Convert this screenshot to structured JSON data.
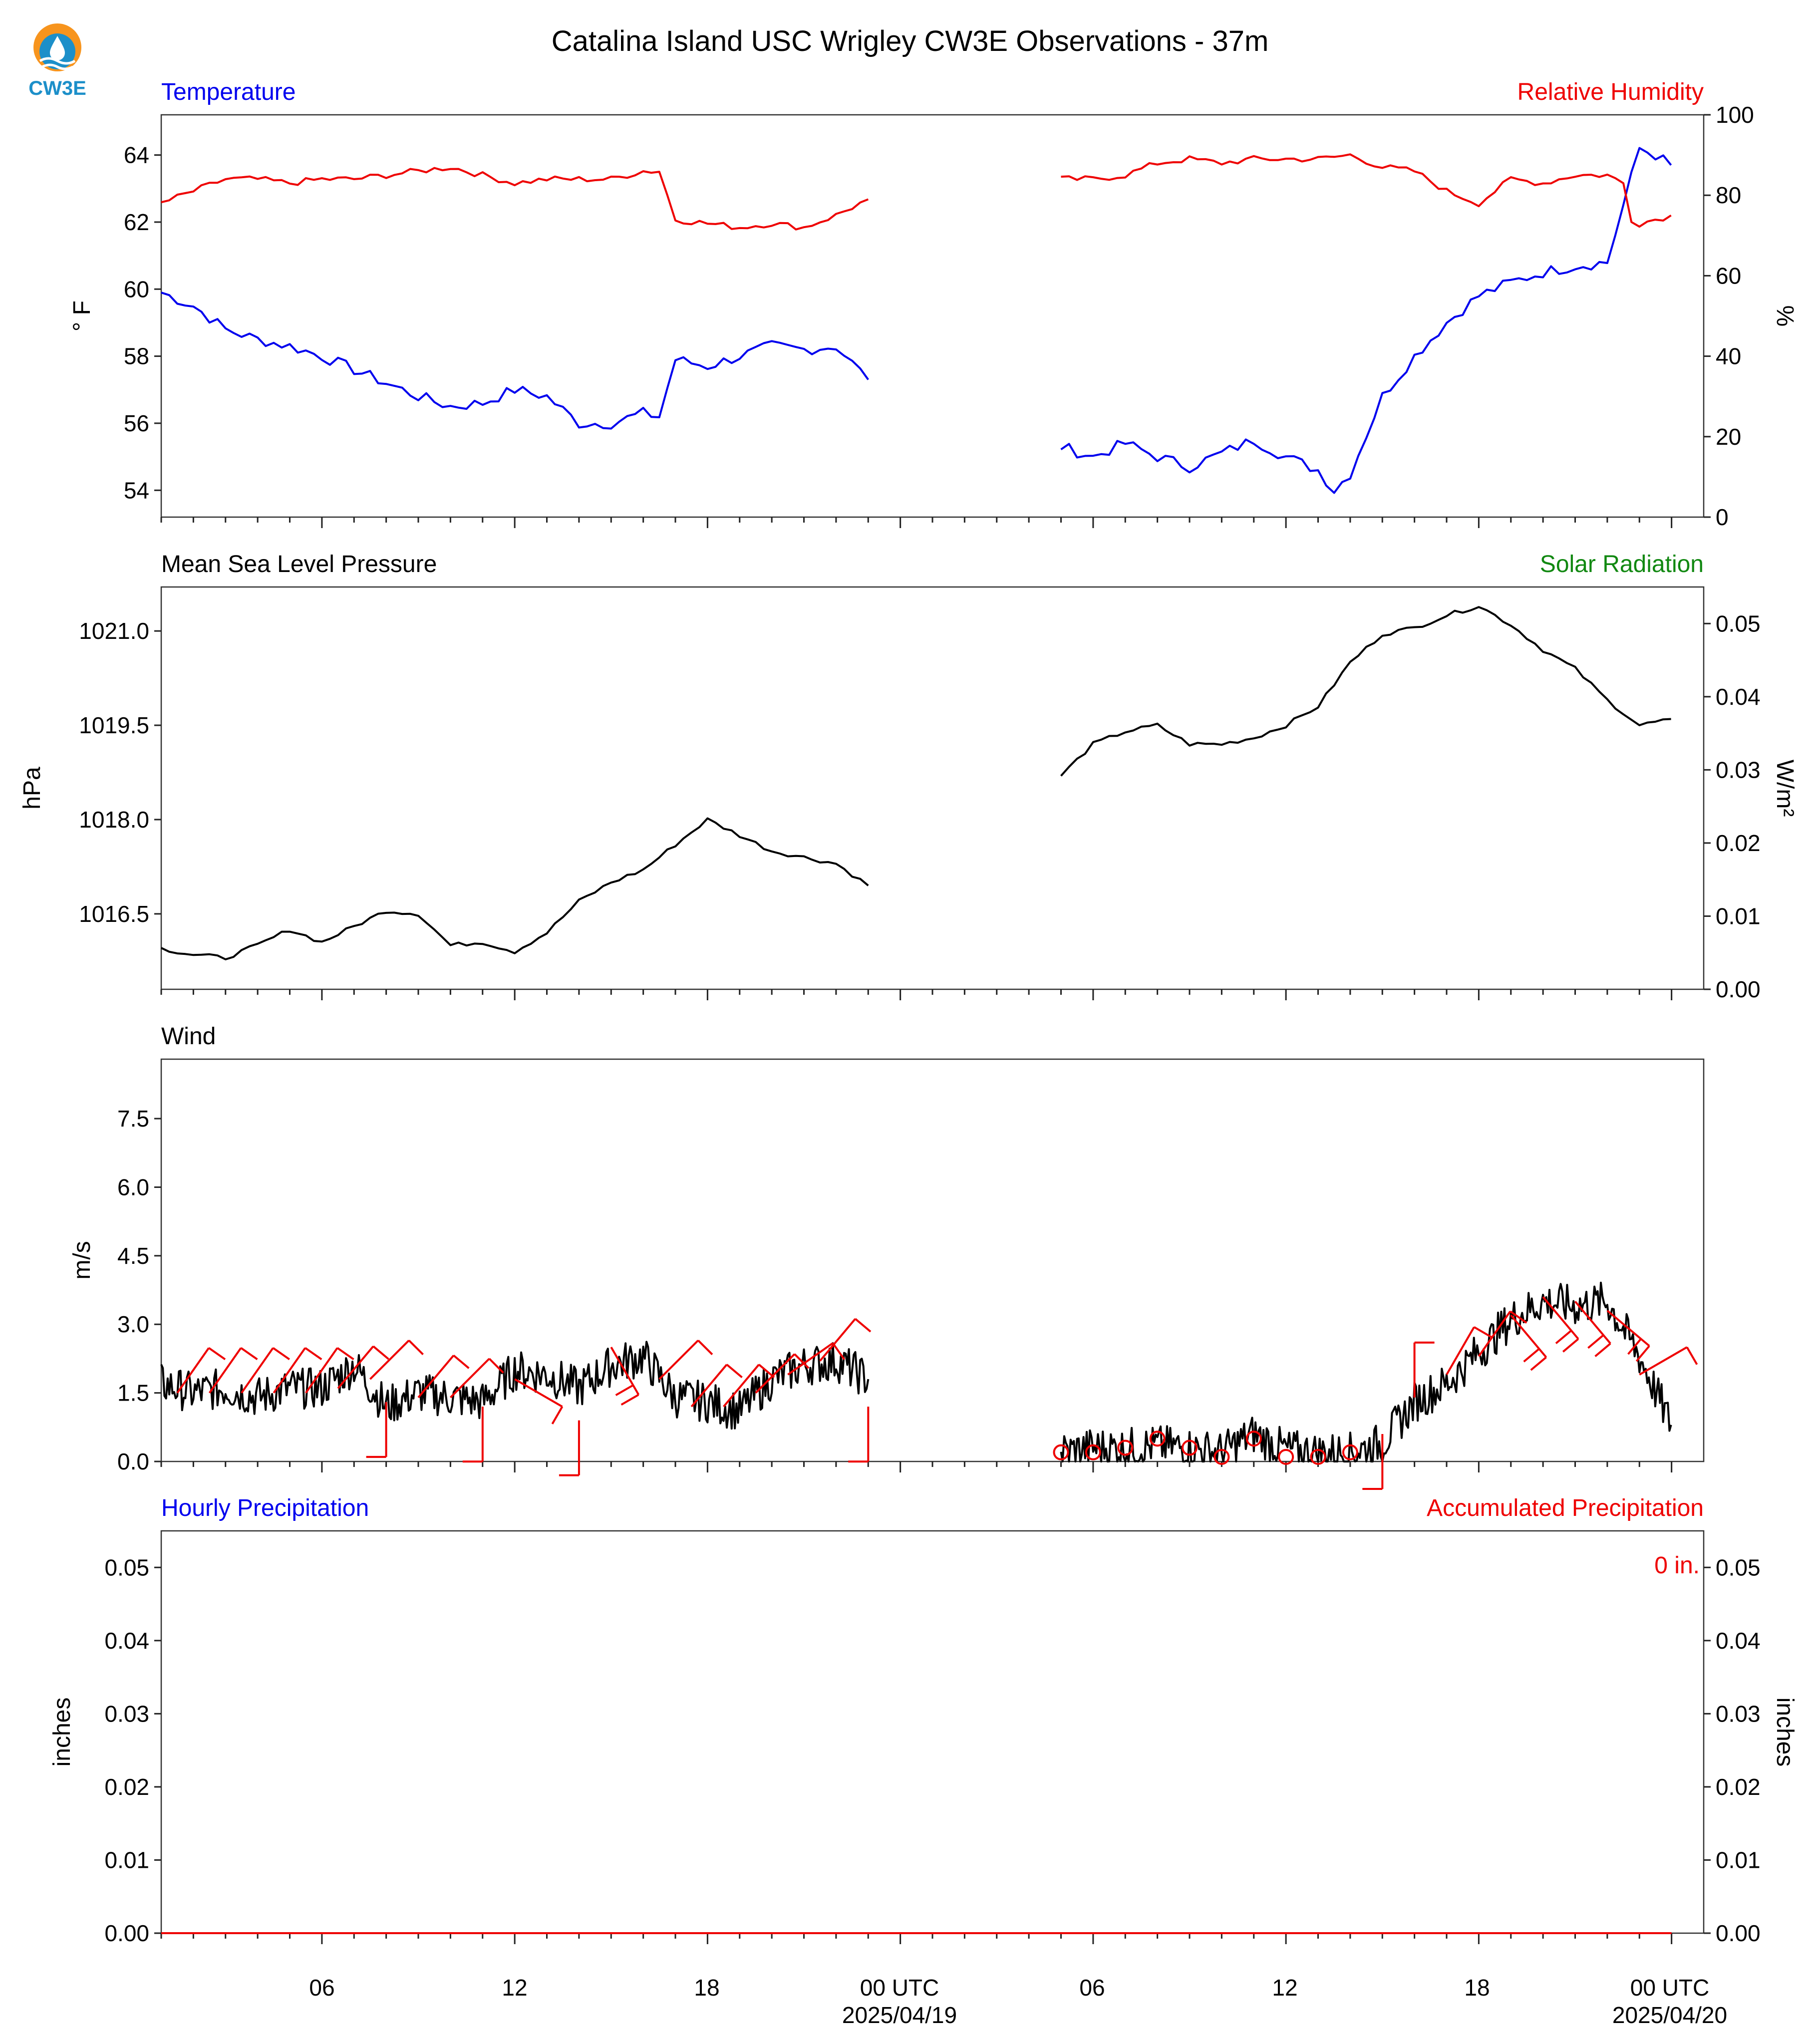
{
  "logo": {
    "text": "CW3E",
    "icon": "cw3e-logo-icon",
    "colors": [
      "#f7941d",
      "#1c8fc9"
    ]
  },
  "title": "Catalina Island USC Wrigley CW3E Observations - 37m",
  "time_axis": {
    "tick_labels": [
      "06",
      "12",
      "18",
      "00 UTC",
      "06",
      "12",
      "18",
      "00 UTC"
    ],
    "date_labels": [
      "2025/04/19",
      "2025/04/20"
    ]
  },
  "colors": {
    "temperature": "#0000ee",
    "humidity": "#ee0000",
    "pressure": "#000000",
    "solar": "#118811",
    "wind": "#000000",
    "barbs": "#ee0000",
    "precip_hourly": "#0000ee",
    "precip_accum": "#ee0000"
  },
  "chart_data": [
    {
      "type": "line",
      "panel": "temperature-humidity",
      "left_title": "Temperature",
      "right_title": "Relative Humidity",
      "ylabel_left": "° F",
      "ylabel_right": "%",
      "ylim_left": [
        53.2,
        65.2
      ],
      "ylim_right": [
        0,
        100
      ],
      "yticks_left": [
        "54",
        "56",
        "58",
        "60",
        "62",
        "64"
      ],
      "yticks_right": [
        "0",
        "20",
        "40",
        "60",
        "80",
        "100"
      ],
      "xlim": [
        "2025-04-18T01:00Z",
        "2025-04-20T01:00Z"
      ],
      "series": [
        {
          "name": "Temperature",
          "axis": "left",
          "segments": [
            {
              "x": [
                "2025-04-18T01:00Z",
                "2025-04-18T02:00Z",
                "2025-04-18T03:00Z",
                "2025-04-18T04:00Z",
                "2025-04-18T05:00Z",
                "2025-04-18T06:00Z",
                "2025-04-18T07:00Z",
                "2025-04-18T08:00Z",
                "2025-04-18T09:00Z",
                "2025-04-18T10:00Z",
                "2025-04-18T11:00Z",
                "2025-04-18T12:00Z",
                "2025-04-18T13:00Z",
                "2025-04-18T14:00Z",
                "2025-04-18T15:00Z",
                "2025-04-18T16:00Z",
                "2025-04-18T16:30Z",
                "2025-04-18T17:00Z",
                "2025-04-18T18:00Z",
                "2025-04-18T19:00Z",
                "2025-04-18T20:00Z",
                "2025-04-18T21:00Z",
                "2025-04-18T22:00Z",
                "2025-04-18T23:00Z"
              ],
              "y": [
                59.9,
                59.5,
                58.8,
                58.5,
                58.3,
                58.0,
                57.6,
                57.2,
                56.8,
                56.5,
                56.6,
                57.0,
                56.8,
                56.0,
                56.0,
                56.3,
                56.2,
                57.9,
                57.7,
                58.0,
                58.3,
                58.2,
                58.3,
                57.3
              ]
            },
            {
              "x": [
                "2025-04-19T05:00Z",
                "2025-04-19T06:00Z",
                "2025-04-19T07:00Z",
                "2025-04-19T08:00Z",
                "2025-04-19T09:00Z",
                "2025-04-19T10:00Z",
                "2025-04-19T11:00Z",
                "2025-04-19T12:00Z",
                "2025-04-19T13:00Z",
                "2025-04-19T13:30Z",
                "2025-04-19T14:00Z",
                "2025-04-19T15:00Z",
                "2025-04-19T16:00Z",
                "2025-04-19T17:00Z",
                "2025-04-19T18:00Z",
                "2025-04-19T19:00Z",
                "2025-04-19T20:00Z",
                "2025-04-19T21:00Z",
                "2025-04-19T22:00Z",
                "2025-04-19T22:30Z",
                "2025-04-19T23:00Z",
                "2025-04-19T23:30Z",
                "2025-04-19T23:59Z"
              ],
              "y": [
                55.3,
                55.0,
                55.4,
                55.0,
                54.7,
                55.1,
                55.5,
                55.0,
                54.6,
                54.0,
                54.5,
                56.8,
                58.0,
                59.0,
                59.8,
                60.2,
                60.5,
                60.7,
                60.8,
                62.5,
                64.2,
                64.0,
                63.7
              ]
            }
          ]
        },
        {
          "name": "Relative Humidity",
          "axis": "right",
          "segments": [
            {
              "x": [
                "2025-04-18T01:00Z",
                "2025-04-18T02:00Z",
                "2025-04-18T03:00Z",
                "2025-04-18T04:00Z",
                "2025-04-18T05:00Z",
                "2025-04-18T06:00Z",
                "2025-04-18T07:00Z",
                "2025-04-18T08:00Z",
                "2025-04-18T09:00Z",
                "2025-04-18T10:00Z",
                "2025-04-18T11:00Z",
                "2025-04-18T12:00Z",
                "2025-04-18T13:00Z",
                "2025-04-18T14:00Z",
                "2025-04-18T15:00Z",
                "2025-04-18T16:00Z",
                "2025-04-18T16:30Z",
                "2025-04-18T17:00Z",
                "2025-04-18T18:00Z",
                "2025-04-18T19:00Z",
                "2025-04-18T20:00Z",
                "2025-04-18T21:00Z",
                "2025-04-18T22:00Z",
                "2025-04-18T23:00Z"
              ],
              "y": [
                78,
                81,
                84,
                84,
                83,
                84,
                84,
                85,
                86,
                87,
                85,
                83,
                84,
                84,
                84,
                86,
                86,
                74,
                73,
                72,
                73,
                72,
                75,
                79
              ]
            },
            {
              "x": [
                "2025-04-19T05:00Z",
                "2025-04-19T06:00Z",
                "2025-04-19T07:00Z",
                "2025-04-19T08:00Z",
                "2025-04-19T09:00Z",
                "2025-04-19T10:00Z",
                "2025-04-19T11:00Z",
                "2025-04-19T12:00Z",
                "2025-04-19T13:00Z",
                "2025-04-19T14:00Z",
                "2025-04-19T15:00Z",
                "2025-04-19T16:00Z",
                "2025-04-19T17:00Z",
                "2025-04-19T18:00Z",
                "2025-04-19T19:00Z",
                "2025-04-19T20:00Z",
                "2025-04-19T21:00Z",
                "2025-04-19T22:00Z",
                "2025-04-19T22:30Z",
                "2025-04-19T22:45Z",
                "2025-04-19T23:00Z",
                "2025-04-19T23:59Z"
              ],
              "y": [
                84,
                84,
                85,
                88,
                89,
                88,
                89,
                89,
                89,
                90,
                87,
                86,
                81,
                78,
                84,
                83,
                85,
                85,
                83,
                74,
                73,
                75
              ]
            }
          ]
        }
      ]
    },
    {
      "type": "line",
      "panel": "pressure-solar",
      "left_title": "Mean Sea Level Pressure",
      "right_title": "Solar Radiation",
      "ylabel_left": "hPa",
      "ylabel_right": "W/m²",
      "ylim_left": [
        1015.3,
        1021.7
      ],
      "ylim_right": [
        0,
        0.055
      ],
      "yticks_left": [
        "1016.5",
        "1018.0",
        "1019.5",
        "1021.0"
      ],
      "yticks_right": [
        "0.00",
        "0.01",
        "0.02",
        "0.03",
        "0.04",
        "0.05"
      ],
      "xlim": [
        "2025-04-18T01:00Z",
        "2025-04-20T01:00Z"
      ],
      "series": [
        {
          "name": "Mean Sea Level Pressure",
          "axis": "left",
          "segments": [
            {
              "x": [
                "2025-04-18T01:00Z",
                "2025-04-18T02:00Z",
                "2025-04-18T03:00Z",
                "2025-04-18T04:00Z",
                "2025-04-18T05:00Z",
                "2025-04-18T06:00Z",
                "2025-04-18T07:00Z",
                "2025-04-18T08:00Z",
                "2025-04-18T09:00Z",
                "2025-04-18T10:00Z",
                "2025-04-18T11:00Z",
                "2025-04-18T12:00Z",
                "2025-04-18T13:00Z",
                "2025-04-18T14:00Z",
                "2025-04-18T15:00Z",
                "2025-04-18T16:00Z",
                "2025-04-18T17:00Z",
                "2025-04-18T18:00Z",
                "2025-04-18T19:00Z",
                "2025-04-18T20:00Z",
                "2025-04-18T21:00Z",
                "2025-04-18T22:00Z",
                "2025-04-18T23:00Z"
              ],
              "y": [
                1015.95,
                1015.85,
                1015.8,
                1016.0,
                1016.25,
                1016.05,
                1016.3,
                1016.55,
                1016.5,
                1016.0,
                1016.05,
                1015.9,
                1016.2,
                1016.7,
                1017.0,
                1017.2,
                1017.6,
                1018.0,
                1017.75,
                1017.5,
                1017.4,
                1017.3,
                1016.95
              ]
            },
            {
              "x": [
                "2025-04-19T05:00Z",
                "2025-04-19T06:00Z",
                "2025-04-19T07:00Z",
                "2025-04-19T08:00Z",
                "2025-04-19T09:00Z",
                "2025-04-19T10:00Z",
                "2025-04-19T11:00Z",
                "2025-04-19T12:00Z",
                "2025-04-19T13:00Z",
                "2025-04-19T14:00Z",
                "2025-04-19T15:00Z",
                "2025-04-19T16:00Z",
                "2025-04-19T17:00Z",
                "2025-04-19T18:00Z",
                "2025-04-19T19:00Z",
                "2025-04-19T20:00Z",
                "2025-04-19T21:00Z",
                "2025-04-19T22:00Z",
                "2025-04-19T23:00Z",
                "2025-04-19T23:59Z"
              ],
              "y": [
                1018.7,
                1019.2,
                1019.4,
                1019.5,
                1019.2,
                1019.2,
                1019.3,
                1019.5,
                1019.8,
                1020.5,
                1020.95,
                1021.05,
                1021.25,
                1021.4,
                1021.1,
                1020.7,
                1020.4,
                1019.9,
                1019.5,
                1019.6
              ]
            }
          ]
        }
      ]
    },
    {
      "type": "line",
      "panel": "wind",
      "left_title": "Wind",
      "ylabel_left": "m/s",
      "ylim_left": [
        0,
        8.8
      ],
      "yticks_left": [
        "0.0",
        "1.5",
        "3.0",
        "4.5",
        "6.0",
        "7.5"
      ],
      "xlim": [
        "2025-04-18T01:00Z",
        "2025-04-20T01:00Z"
      ],
      "series": [
        {
          "name": "Wind Speed",
          "axis": "left",
          "segments": [
            {
              "x": [
                "2025-04-18T01:00Z",
                "2025-04-18T02:00Z",
                "2025-04-18T03:00Z",
                "2025-04-18T04:00Z",
                "2025-04-18T05:00Z",
                "2025-04-18T06:00Z",
                "2025-04-18T07:00Z",
                "2025-04-18T08:00Z",
                "2025-04-18T09:00Z",
                "2025-04-18T10:00Z",
                "2025-04-18T11:00Z",
                "2025-04-18T12:00Z",
                "2025-04-18T13:00Z",
                "2025-04-18T14:00Z",
                "2025-04-18T15:00Z",
                "2025-04-18T16:00Z",
                "2025-04-18T17:00Z",
                "2025-04-18T18:00Z",
                "2025-04-18T19:00Z",
                "2025-04-18T20:00Z",
                "2025-04-18T21:00Z",
                "2025-04-18T22:00Z",
                "2025-04-18T23:00Z"
              ],
              "y": [
                1.7,
                1.5,
                1.6,
                1.4,
                1.6,
                1.6,
                2.1,
                1.2,
                1.5,
                1.4,
                1.3,
                2.0,
                1.9,
                1.6,
                2.1,
                2.3,
                1.4,
                1.3,
                1.1,
                1.8,
                2.1,
                2.2,
                1.8
              ]
            },
            {
              "x": [
                "2025-04-19T05:00Z",
                "2025-04-19T06:00Z",
                "2025-04-19T07:00Z",
                "2025-04-19T08:00Z",
                "2025-04-19T09:00Z",
                "2025-04-19T10:00Z",
                "2025-04-19T11:00Z",
                "2025-04-19T12:00Z",
                "2025-04-19T13:00Z",
                "2025-04-19T14:00Z",
                "2025-04-19T15:00Z",
                "2025-04-19T16:00Z",
                "2025-04-19T17:00Z",
                "2025-04-19T18:00Z",
                "2025-04-19T19:00Z",
                "2025-04-19T20:00Z",
                "2025-04-19T21:00Z",
                "2025-04-19T22:00Z",
                "2025-04-19T23:00Z",
                "2025-04-19T23:59Z"
              ],
              "y": [
                0.2,
                0.3,
                0.3,
                0.35,
                0.3,
                0.2,
                0.6,
                0.25,
                0.2,
                0.2,
                0.4,
                1.3,
                1.7,
                2.4,
                3.1,
                3.5,
                3.4,
                3.5,
                2.3,
                0.8
              ]
            }
          ]
        }
      ],
      "barbs": {
        "x": [
          "2025-04-18T01:30Z",
          "2025-04-18T02:30Z",
          "2025-04-18T03:30Z",
          "2025-04-18T04:30Z",
          "2025-04-18T05:30Z",
          "2025-04-18T06:30Z",
          "2025-04-18T07:30Z",
          "2025-04-18T08:00Z",
          "2025-04-18T09:00Z",
          "2025-04-18T10:00Z",
          "2025-04-18T11:00Z",
          "2025-04-18T12:00Z",
          "2025-04-18T14:00Z",
          "2025-04-18T15:00Z",
          "2025-04-18T16:30Z",
          "2025-04-18T17:30Z",
          "2025-04-18T18:30Z",
          "2025-04-18T19:30Z",
          "2025-04-18T20:30Z",
          "2025-04-18T21:30Z",
          "2025-04-18T23:00Z",
          "2025-04-19T05:00Z",
          "2025-04-19T06:00Z",
          "2025-04-19T07:00Z",
          "2025-04-19T08:00Z",
          "2025-04-19T09:00Z",
          "2025-04-19T10:00Z",
          "2025-04-19T11:00Z",
          "2025-04-19T12:00Z",
          "2025-04-19T13:00Z",
          "2025-04-19T14:00Z",
          "2025-04-19T15:00Z",
          "2025-04-19T16:00Z",
          "2025-04-19T17:00Z",
          "2025-04-19T18:00Z",
          "2025-04-19T19:00Z",
          "2025-04-19T20:00Z",
          "2025-04-19T21:00Z",
          "2025-04-19T22:00Z",
          "2025-04-19T23:00Z"
        ],
        "speed": [
          1.5,
          1.5,
          1.5,
          1.5,
          1.5,
          1.6,
          1.8,
          1.3,
          1.4,
          1.4,
          1.2,
          1.8,
          0.9,
          2.5,
          1.8,
          1.2,
          1.2,
          1.5,
          1.9,
          2.2,
          1.2,
          0.2,
          0.2,
          0.3,
          0.5,
          0.3,
          0.1,
          0.5,
          0.1,
          0.1,
          0.2,
          0.6,
          1.4,
          1.9,
          2.3,
          3.2,
          3.6,
          3.5,
          3.3,
          1.9
        ],
        "direction": [
          215,
          215,
          215,
          215,
          215,
          220,
          225,
          0,
          220,
          225,
          0,
          300,
          0,
          330,
          225,
          220,
          220,
          225,
          235,
          220,
          0,
          0,
          0,
          0,
          0,
          0,
          0,
          0,
          0,
          0,
          0,
          0,
          180,
          210,
          215,
          320,
          320,
          320,
          310,
          240
        ]
      }
    },
    {
      "type": "line",
      "panel": "precipitation",
      "left_title": "Hourly Precipitation",
      "right_title": "Accumulated Precipitation",
      "ylabel_left": "inches",
      "ylabel_right": "inches",
      "ylim_left": [
        0,
        0.055
      ],
      "ylim_right": [
        0,
        0.055
      ],
      "yticks_left": [
        "0.00",
        "0.01",
        "0.02",
        "0.03",
        "0.04",
        "0.05"
      ],
      "yticks_right": [
        "0.00",
        "0.01",
        "0.02",
        "0.03",
        "0.04",
        "0.05"
      ],
      "annotation": "0 in.",
      "xlim": [
        "2025-04-18T01:00Z",
        "2025-04-20T01:00Z"
      ],
      "series": [
        {
          "name": "Hourly Precipitation",
          "axis": "left",
          "segments": [
            {
              "x": [
                "2025-04-18T01:00Z",
                "2025-04-20T00:00Z"
              ],
              "y": [
                0,
                0
              ]
            }
          ]
        },
        {
          "name": "Accumulated Precipitation",
          "axis": "right",
          "segments": [
            {
              "x": [
                "2025-04-18T01:00Z",
                "2025-04-20T00:00Z"
              ],
              "y": [
                0,
                0
              ]
            }
          ]
        }
      ]
    }
  ]
}
